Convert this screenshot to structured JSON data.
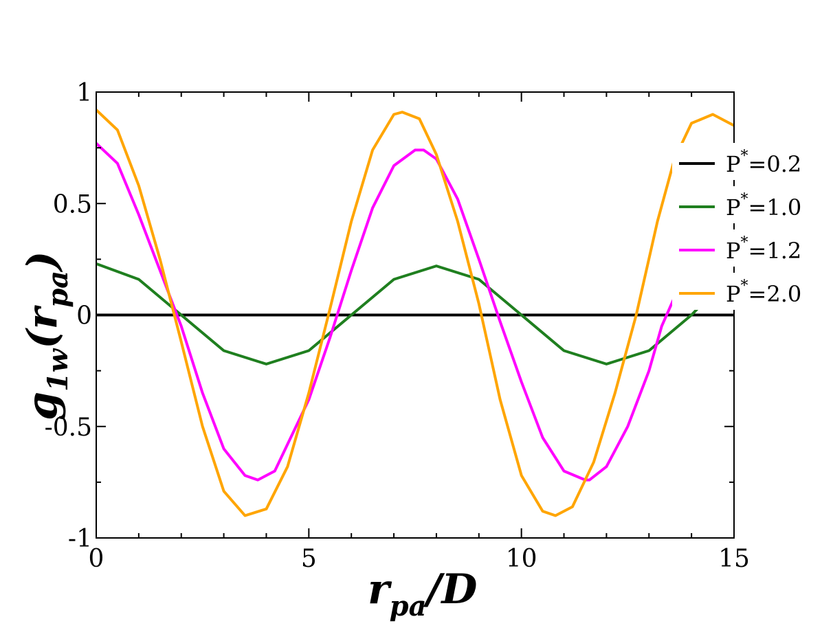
{
  "chart_data": {
    "type": "line",
    "xlabel": {
      "main": "r",
      "sub": "pa",
      "tail": "/D"
    },
    "ylabel": {
      "main": "g",
      "sub": "1w",
      "mid": "(r",
      "sub2": "pa",
      "tail": ")"
    },
    "xlim": [
      0,
      15
    ],
    "ylim": [
      -1,
      1
    ],
    "x_ticks": [
      0,
      5,
      10,
      15
    ],
    "y_ticks": [
      -1,
      -0.5,
      0,
      0.5,
      1
    ],
    "x_tick_labels": [
      "0",
      "5",
      "10",
      "15"
    ],
    "y_tick_labels": [
      "-1",
      "-0.5",
      "0",
      "0.5",
      "1"
    ],
    "grid": false,
    "legend_position": "right",
    "series": [
      {
        "name": "P*=0.2",
        "legend_base": "P",
        "legend_sup": "*",
        "legend_rest": "=0.2",
        "color": "#000000",
        "x": [
          0,
          15
        ],
        "y": [
          0,
          0
        ]
      },
      {
        "name": "P*=1.0",
        "legend_base": "P",
        "legend_sup": "*",
        "legend_rest": "=1.0",
        "color": "#1f7f1f",
        "x": [
          0,
          1,
          2,
          3,
          4,
          5,
          6,
          7,
          8,
          9,
          10,
          11,
          12,
          13,
          14,
          14.5
        ],
        "y": [
          0.23,
          0.16,
          0.0,
          -0.16,
          -0.22,
          -0.16,
          0.0,
          0.16,
          0.22,
          0.16,
          0.0,
          -0.16,
          -0.22,
          -0.16,
          0.0,
          0.1
        ]
      },
      {
        "name": "P*=1.2",
        "legend_base": "P",
        "legend_sup": "*",
        "legend_rest": "=1.2",
        "color": "#ff00ff",
        "x": [
          0,
          0.5,
          1,
          1.5,
          2,
          2.5,
          3,
          3.5,
          3.8,
          4.2,
          5,
          5.5,
          6,
          6.5,
          7,
          7.5,
          7.7,
          8,
          8.5,
          9,
          9.5,
          10,
          10.5,
          11,
          11.5,
          11.6,
          12,
          12.5,
          13,
          13.3,
          13.6
        ],
        "y": [
          0.77,
          0.68,
          0.45,
          0.2,
          -0.05,
          -0.35,
          -0.6,
          -0.72,
          -0.74,
          -0.7,
          -0.38,
          -0.1,
          0.2,
          0.48,
          0.67,
          0.74,
          0.74,
          0.7,
          0.52,
          0.25,
          -0.03,
          -0.3,
          -0.55,
          -0.7,
          -0.74,
          -0.74,
          -0.68,
          -0.5,
          -0.25,
          -0.05,
          0.08
        ]
      },
      {
        "name": "P*=2.0",
        "legend_base": "P",
        "legend_sup": "*",
        "legend_rest": "=2.0",
        "color": "#ffa500",
        "x": [
          0,
          0.5,
          1,
          1.5,
          2,
          2.5,
          3,
          3.5,
          4,
          4.5,
          5,
          5.5,
          6,
          6.5,
          7,
          7.2,
          7.6,
          8,
          8.5,
          9,
          9.5,
          10,
          10.5,
          10.8,
          11.2,
          11.7,
          12.2,
          12.7,
          13.2,
          13.6,
          14,
          14.5,
          15
        ],
        "y": [
          0.92,
          0.83,
          0.58,
          0.25,
          -0.12,
          -0.5,
          -0.79,
          -0.9,
          -0.87,
          -0.68,
          -0.35,
          0.03,
          0.42,
          0.74,
          0.9,
          0.91,
          0.88,
          0.72,
          0.42,
          0.05,
          -0.38,
          -0.72,
          -0.88,
          -0.9,
          -0.86,
          -0.66,
          -0.35,
          0.0,
          0.42,
          0.7,
          0.86,
          0.9,
          0.85
        ]
      }
    ]
  }
}
